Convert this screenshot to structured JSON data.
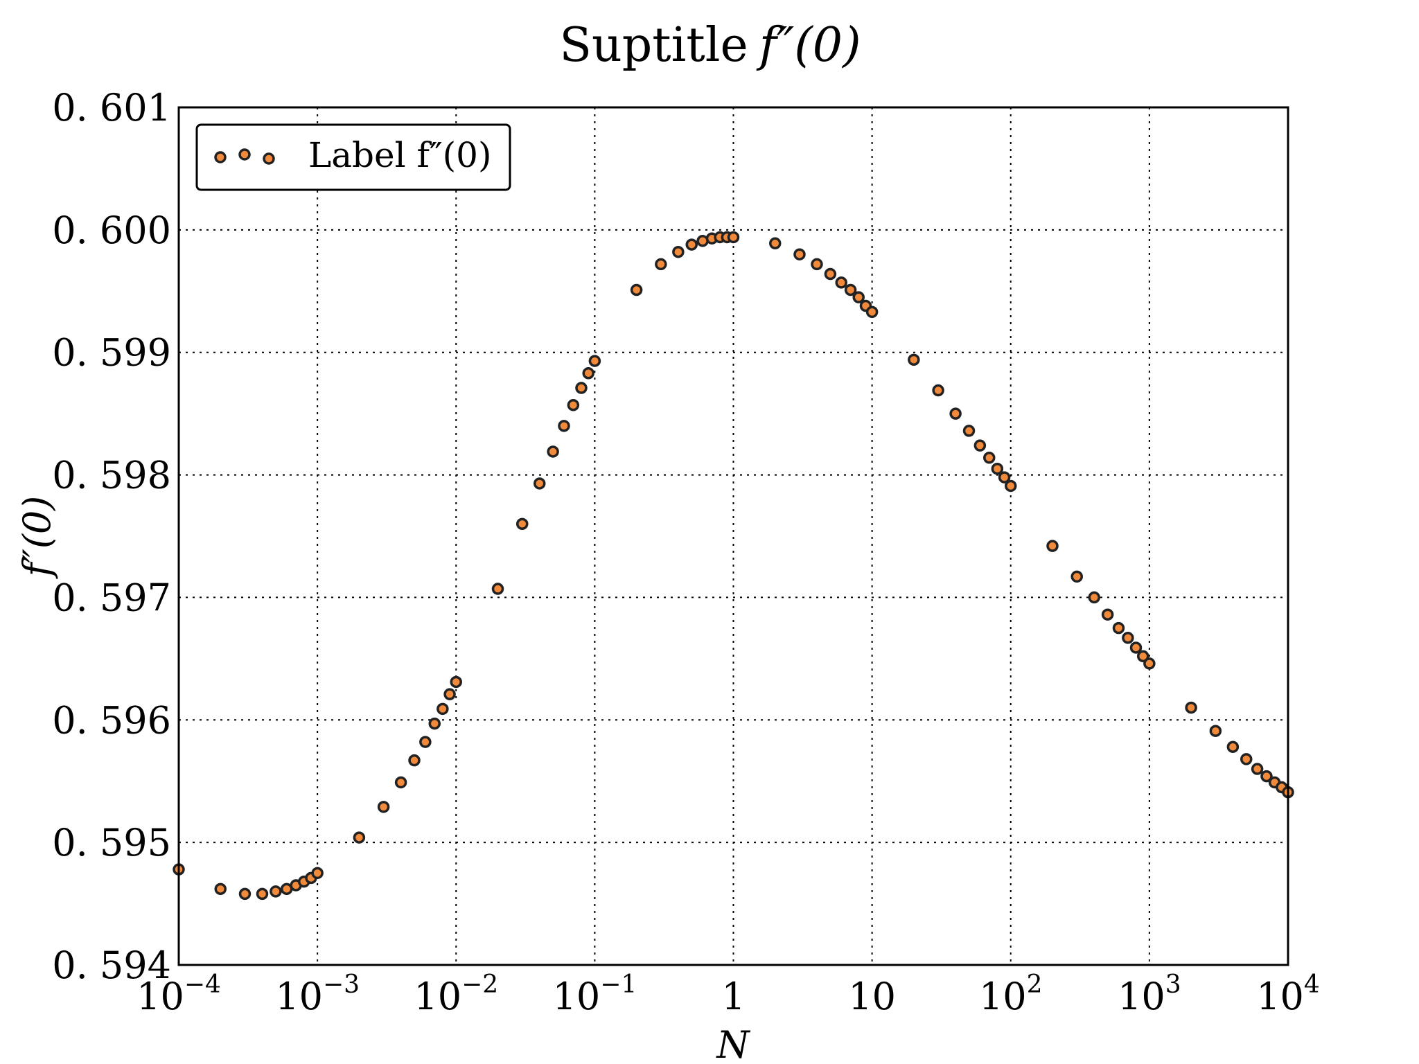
{
  "chart_data": {
    "type": "scatter",
    "title": "Suptitle",
    "title_math": "f″(0)",
    "xlabel": "N",
    "ylabel": "f″(0)",
    "xscale": "log",
    "xlim": [
      0.0001,
      10000
    ],
    "ylim": [
      0.594,
      0.601
    ],
    "x_tick_labels": [
      {
        "base": "10",
        "exp": "−4"
      },
      {
        "base": "10",
        "exp": "−3"
      },
      {
        "base": "10",
        "exp": "−2"
      },
      {
        "base": "10",
        "exp": "−1"
      },
      {
        "base": "1",
        "exp": ""
      },
      {
        "base": "10",
        "exp": ""
      },
      {
        "base": "10",
        "exp": "2"
      },
      {
        "base": "10",
        "exp": "3"
      },
      {
        "base": "10",
        "exp": "4"
      }
    ],
    "y_tick_labels": [
      "0. 594",
      "0. 595",
      "0. 596",
      "0. 597",
      "0. 598",
      "0. 599",
      "0. 600",
      "0. 601"
    ],
    "grid": true,
    "legend_position": "top-left",
    "series": [
      {
        "name": "Label f″(0)",
        "color": "#f28a3c",
        "x": [
          0.0001,
          0.0002,
          0.0003,
          0.0004,
          0.0005,
          0.0006,
          0.0007,
          0.0008,
          0.0009,
          0.001,
          0.002,
          0.003,
          0.004,
          0.005,
          0.006,
          0.007,
          0.008,
          0.009,
          0.01,
          0.02,
          0.03,
          0.04,
          0.05,
          0.06,
          0.07,
          0.08,
          0.09,
          0.1,
          0.2,
          0.3,
          0.4,
          0.5,
          0.6,
          0.7,
          0.8,
          0.9,
          1,
          2,
          3,
          4,
          5,
          6,
          7,
          8,
          9,
          10,
          20,
          30,
          40,
          50,
          60,
          70,
          80,
          90,
          100,
          200,
          300,
          400,
          500,
          600,
          700,
          800,
          900,
          1000,
          2000,
          3000,
          4000,
          5000,
          6000,
          7000,
          8000,
          9000,
          10000
        ],
        "y": [
          0.59478,
          0.59462,
          0.59458,
          0.59458,
          0.5946,
          0.59462,
          0.59465,
          0.59468,
          0.59471,
          0.59475,
          0.59504,
          0.59529,
          0.59549,
          0.59567,
          0.59582,
          0.59597,
          0.59609,
          0.59621,
          0.59631,
          0.59707,
          0.5976,
          0.59793,
          0.59819,
          0.5984,
          0.59857,
          0.59871,
          0.59883,
          0.59893,
          0.59951,
          0.59972,
          0.59982,
          0.59988,
          0.59991,
          0.59993,
          0.59994,
          0.59994,
          0.59994,
          0.59989,
          0.5998,
          0.59972,
          0.59964,
          0.59957,
          0.59951,
          0.59945,
          0.59938,
          0.59933,
          0.59894,
          0.59869,
          0.5985,
          0.59836,
          0.59824,
          0.59814,
          0.59805,
          0.59798,
          0.59791,
          0.59742,
          0.59717,
          0.597,
          0.59686,
          0.59675,
          0.59667,
          0.59659,
          0.59652,
          0.59646,
          0.5961,
          0.59591,
          0.59578,
          0.59568,
          0.5956,
          0.59554,
          0.59549,
          0.59545,
          0.59541
        ]
      }
    ]
  }
}
